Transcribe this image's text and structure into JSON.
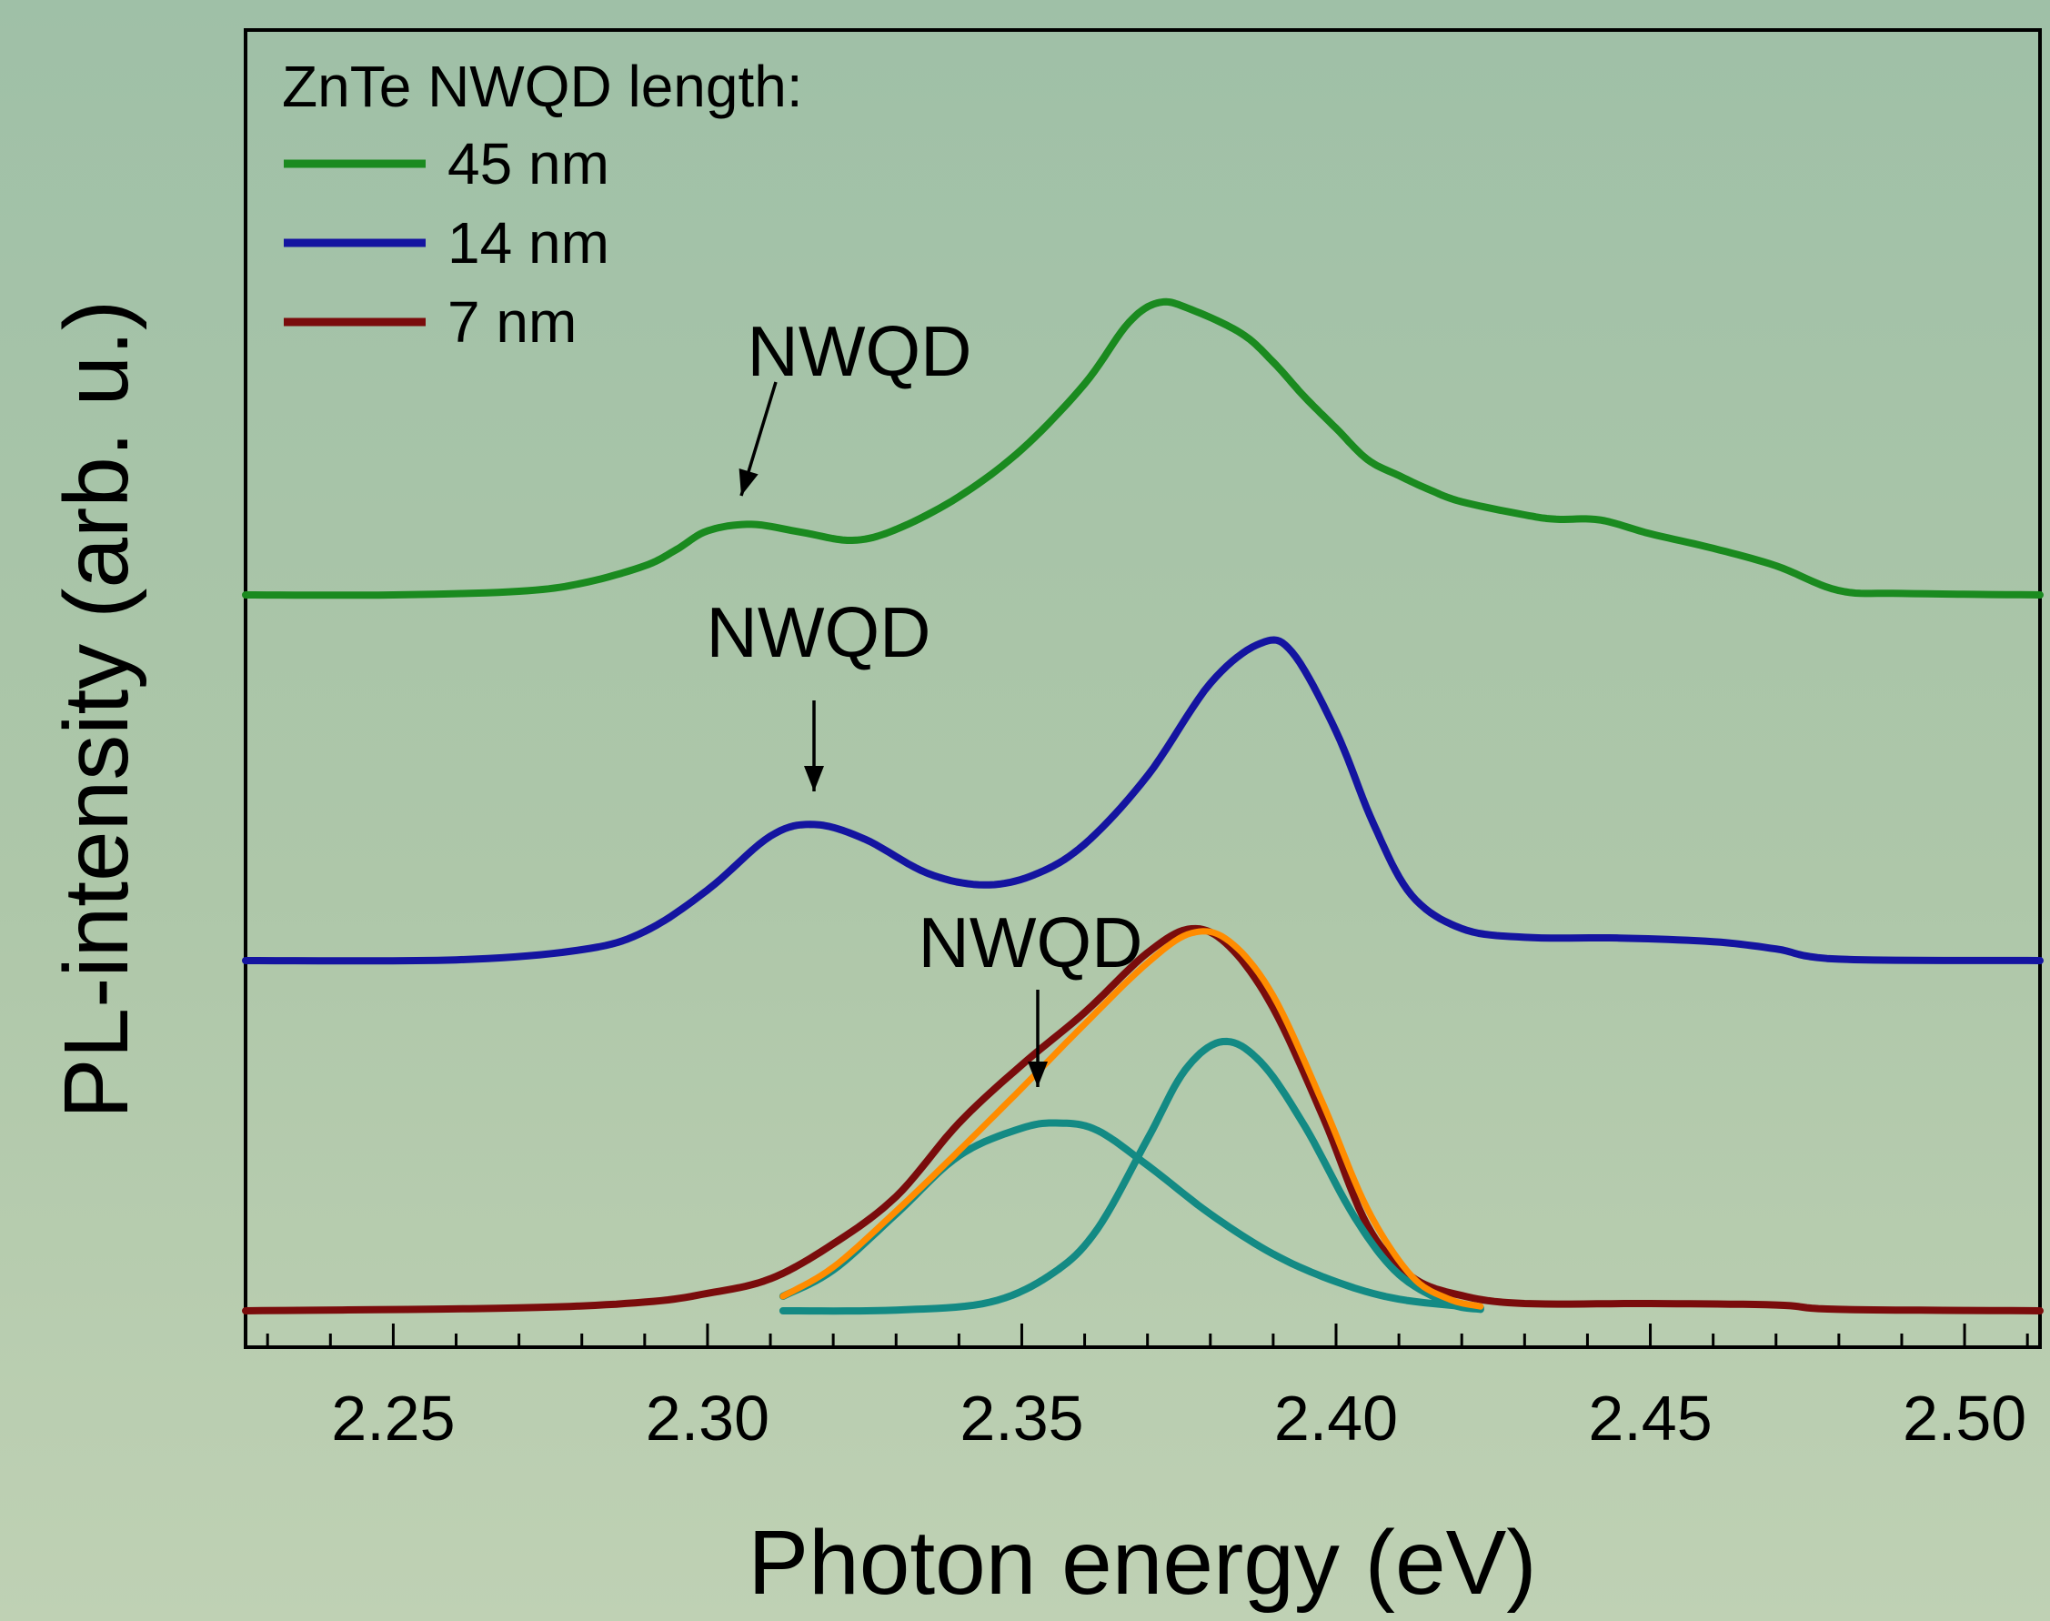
{
  "chart_data": {
    "type": "line",
    "title": "",
    "xlabel": "Photon energy (eV)",
    "ylabel": "PL-intensity (arb. u.)",
    "xlim": [
      2.2265,
      2.512
    ],
    "ylim": [
      0,
      1
    ],
    "x_ticks": [
      "2.25",
      "2.30",
      "2.35",
      "2.40",
      "2.45",
      "2.50"
    ],
    "x_tick_values": [
      2.25,
      2.3,
      2.35,
      2.4,
      2.45,
      2.5
    ],
    "y_ticks_shown": false,
    "grid": false,
    "legend": {
      "title": "ZnTe NWQD length:",
      "placement": "top-left",
      "entries": [
        {
          "label": "45 nm",
          "color": "#1a8a1f"
        },
        {
          "label": "14 nm",
          "color": "#1414a0"
        },
        {
          "label": "7 nm",
          "color": "#7a0c0c"
        }
      ]
    },
    "series": [
      {
        "name": "45 nm",
        "color": "#1a8a1f",
        "x": [
          2.2265,
          2.25,
          2.27,
          2.28,
          2.29,
          2.295,
          2.3,
          2.307,
          2.315,
          2.323,
          2.33,
          2.34,
          2.35,
          2.36,
          2.367,
          2.372,
          2.377,
          2.385,
          2.39,
          2.395,
          2.4,
          2.405,
          2.41,
          2.415,
          2.42,
          2.43,
          2.435,
          2.442,
          2.45,
          2.46,
          2.47,
          2.48,
          2.49,
          2.512
        ],
        "y": [
          0.0,
          0.0,
          0.005,
          0.016,
          0.04,
          0.062,
          0.088,
          0.097,
          0.086,
          0.075,
          0.09,
          0.135,
          0.2,
          0.29,
          0.374,
          0.402,
          0.392,
          0.359,
          0.32,
          0.272,
          0.229,
          0.186,
          0.164,
          0.144,
          0.128,
          0.11,
          0.104,
          0.103,
          0.084,
          0.064,
          0.04,
          0.006,
          0.002,
          0.0
        ]
      },
      {
        "name": "14 nm",
        "color": "#1414a0",
        "x": [
          2.2265,
          2.26,
          2.28,
          2.29,
          2.3,
          2.31,
          2.317,
          2.325,
          2.335,
          2.344,
          2.352,
          2.36,
          2.37,
          2.38,
          2.388,
          2.393,
          2.4,
          2.406,
          2.412,
          2.42,
          2.43,
          2.445,
          2.46,
          2.47,
          2.48,
          2.512
        ],
        "y": [
          0.0,
          0.001,
          0.015,
          0.04,
          0.097,
          0.171,
          0.187,
          0.167,
          0.12,
          0.104,
          0.118,
          0.16,
          0.254,
          0.381,
          0.436,
          0.424,
          0.315,
          0.187,
          0.09,
          0.044,
          0.032,
          0.031,
          0.026,
          0.016,
          0.002,
          0.0
        ]
      },
      {
        "name": "7 nm",
        "color": "#7a0c0c",
        "x": [
          2.2265,
          2.27,
          2.29,
          2.3,
          2.31,
          2.32,
          2.33,
          2.34,
          2.35,
          2.36,
          2.37,
          2.377,
          2.383,
          2.39,
          2.398,
          2.405,
          2.412,
          2.42,
          2.43,
          2.45,
          2.47,
          2.48,
          2.512
        ],
        "y": [
          0.0,
          0.004,
          0.012,
          0.024,
          0.044,
          0.092,
          0.157,
          0.258,
          0.338,
          0.41,
          0.492,
          0.525,
          0.501,
          0.416,
          0.265,
          0.117,
          0.047,
          0.021,
          0.01,
          0.01,
          0.008,
          0.002,
          0.0
        ]
      },
      {
        "name": "",
        "color": "#ff8c00",
        "x": [
          2.312,
          2.32,
          2.33,
          2.34,
          2.35,
          2.36,
          2.37,
          2.377,
          2.383,
          2.39,
          2.398,
          2.405,
          2.412,
          2.418,
          2.423
        ],
        "y": [
          0.02,
          0.06,
          0.137,
          0.22,
          0.306,
          0.394,
          0.478,
          0.519,
          0.508,
          0.433,
          0.283,
          0.14,
          0.048,
          0.016,
          0.006
        ]
      },
      {
        "name": "",
        "color": "#138a84",
        "x": [
          2.312,
          2.32,
          2.33,
          2.34,
          2.35,
          2.356,
          2.362,
          2.37,
          2.38,
          2.39,
          2.4,
          2.41,
          2.423
        ],
        "y": [
          0.02,
          0.056,
          0.133,
          0.213,
          0.251,
          0.258,
          0.248,
          0.2,
          0.133,
          0.078,
          0.04,
          0.016,
          0.004
        ]
      },
      {
        "name": "",
        "color": "#138a84",
        "x": [
          2.312,
          2.33,
          2.345,
          2.355,
          2.362,
          2.37,
          2.376,
          2.382,
          2.388,
          2.395,
          2.403,
          2.41,
          2.418,
          2.423
        ],
        "y": [
          0.0,
          0.001,
          0.012,
          0.052,
          0.112,
          0.236,
          0.331,
          0.37,
          0.342,
          0.254,
          0.128,
          0.05,
          0.01,
          0.002
        ]
      }
    ],
    "annotations": [
      {
        "text": "NWQD",
        "x": 2.307,
        "series": "45 nm"
      },
      {
        "text": "NWQD",
        "x": 2.317,
        "series": "14 nm"
      },
      {
        "text": "NWQD",
        "x": 2.352,
        "series": "7 nm"
      }
    ]
  }
}
